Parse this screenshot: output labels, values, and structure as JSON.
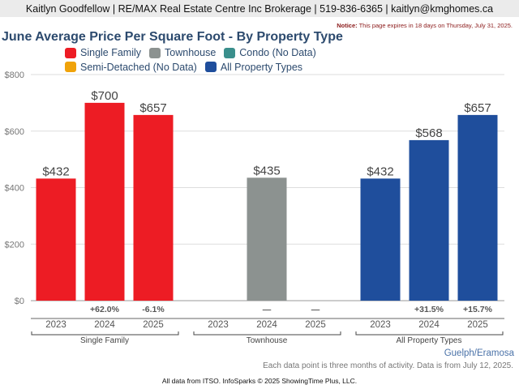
{
  "header": "Kaitlyn Goodfellow | RE/MAX Real Estate Centre Inc Brokerage | 519-836-6365 | kaitlyn@kmghomes.ca",
  "notice": {
    "label": "Notice:",
    "text": " This page expires in 18 days on Thursday, July 31, 2025."
  },
  "location": "Guelph/Eramosa",
  "note": "Each data point is three months of activity. Data is from July 12, 2025.",
  "footer": "All data from ITSO. InfoSparks © 2025 ShowingTime Plus, LLC.",
  "chart_data": {
    "type": "bar",
    "title": "June Average Price Per Square Foot - By Property Type",
    "ylim": [
      0,
      800
    ],
    "yticks": [
      "$0",
      "$200",
      "$400",
      "$600",
      "$800"
    ],
    "ytick_values": [
      0,
      200,
      400,
      600,
      800
    ],
    "legend": [
      {
        "name": "Single Family",
        "color": "#ed1c24"
      },
      {
        "name": "Townhouse",
        "color": "#8c9290"
      },
      {
        "name": "Condo (No Data)",
        "color": "#3a8f8c"
      },
      {
        "name": "Semi-Detached (No Data)",
        "color": "#f0a30a"
      },
      {
        "name": "All Property Types",
        "color": "#1f4e9c"
      }
    ],
    "groups": [
      {
        "name": "Single Family",
        "color": "#ed1c24",
        "years": [
          "2023",
          "2024",
          "2025"
        ],
        "values": [
          432,
          700,
          657
        ],
        "labels": [
          "$432",
          "$700",
          "$657"
        ],
        "changes": [
          "",
          "+62.0%",
          "-6.1%"
        ]
      },
      {
        "name": "Townhouse",
        "color": "#8c9290",
        "years": [
          "2023",
          "2024",
          "2025"
        ],
        "values": [
          null,
          435,
          null
        ],
        "labels": [
          "",
          "$435",
          ""
        ],
        "changes": [
          "",
          "—",
          "—"
        ]
      },
      {
        "name": "All Property Types",
        "color": "#1f4e9c",
        "years": [
          "2023",
          "2024",
          "2025"
        ],
        "values": [
          432,
          568,
          657
        ],
        "labels": [
          "$432",
          "$568",
          "$657"
        ],
        "changes": [
          "",
          "+31.5%",
          "+15.7%"
        ]
      }
    ]
  }
}
